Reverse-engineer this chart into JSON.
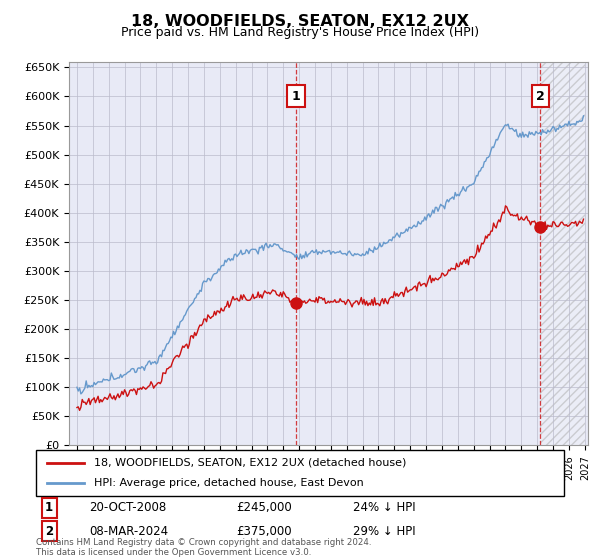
{
  "title": "18, WOODFIELDS, SEATON, EX12 2UX",
  "subtitle": "Price paid vs. HM Land Registry's House Price Index (HPI)",
  "ylabel_ticks": [
    "£0",
    "£50K",
    "£100K",
    "£150K",
    "£200K",
    "£250K",
    "£300K",
    "£350K",
    "£400K",
    "£450K",
    "£500K",
    "£550K",
    "£600K",
    "£650K"
  ],
  "ytick_values": [
    0,
    50000,
    100000,
    150000,
    200000,
    250000,
    300000,
    350000,
    400000,
    450000,
    500000,
    550000,
    600000,
    650000
  ],
  "ylim": [
    0,
    660000
  ],
  "hpi_color": "#6699cc",
  "price_color": "#cc1111",
  "marker1_x": 2008.8,
  "marker1_price": 245000,
  "marker2_x": 2024.2,
  "marker2_price": 375000,
  "legend_line1": "18, WOODFIELDS, SEATON, EX12 2UX (detached house)",
  "legend_line2": "HPI: Average price, detached house, East Devon",
  "table_rows": [
    [
      "1",
      "20-OCT-2008",
      "£245,000",
      "24% ↓ HPI"
    ],
    [
      "2",
      "08-MAR-2024",
      "£375,000",
      "29% ↓ HPI"
    ]
  ],
  "footnote": "Contains HM Land Registry data © Crown copyright and database right 2024.\nThis data is licensed under the Open Government Licence v3.0.",
  "grid_color": "#bbbbcc",
  "background_color": "#ffffff",
  "plot_bg_color": "#e8eaf6"
}
